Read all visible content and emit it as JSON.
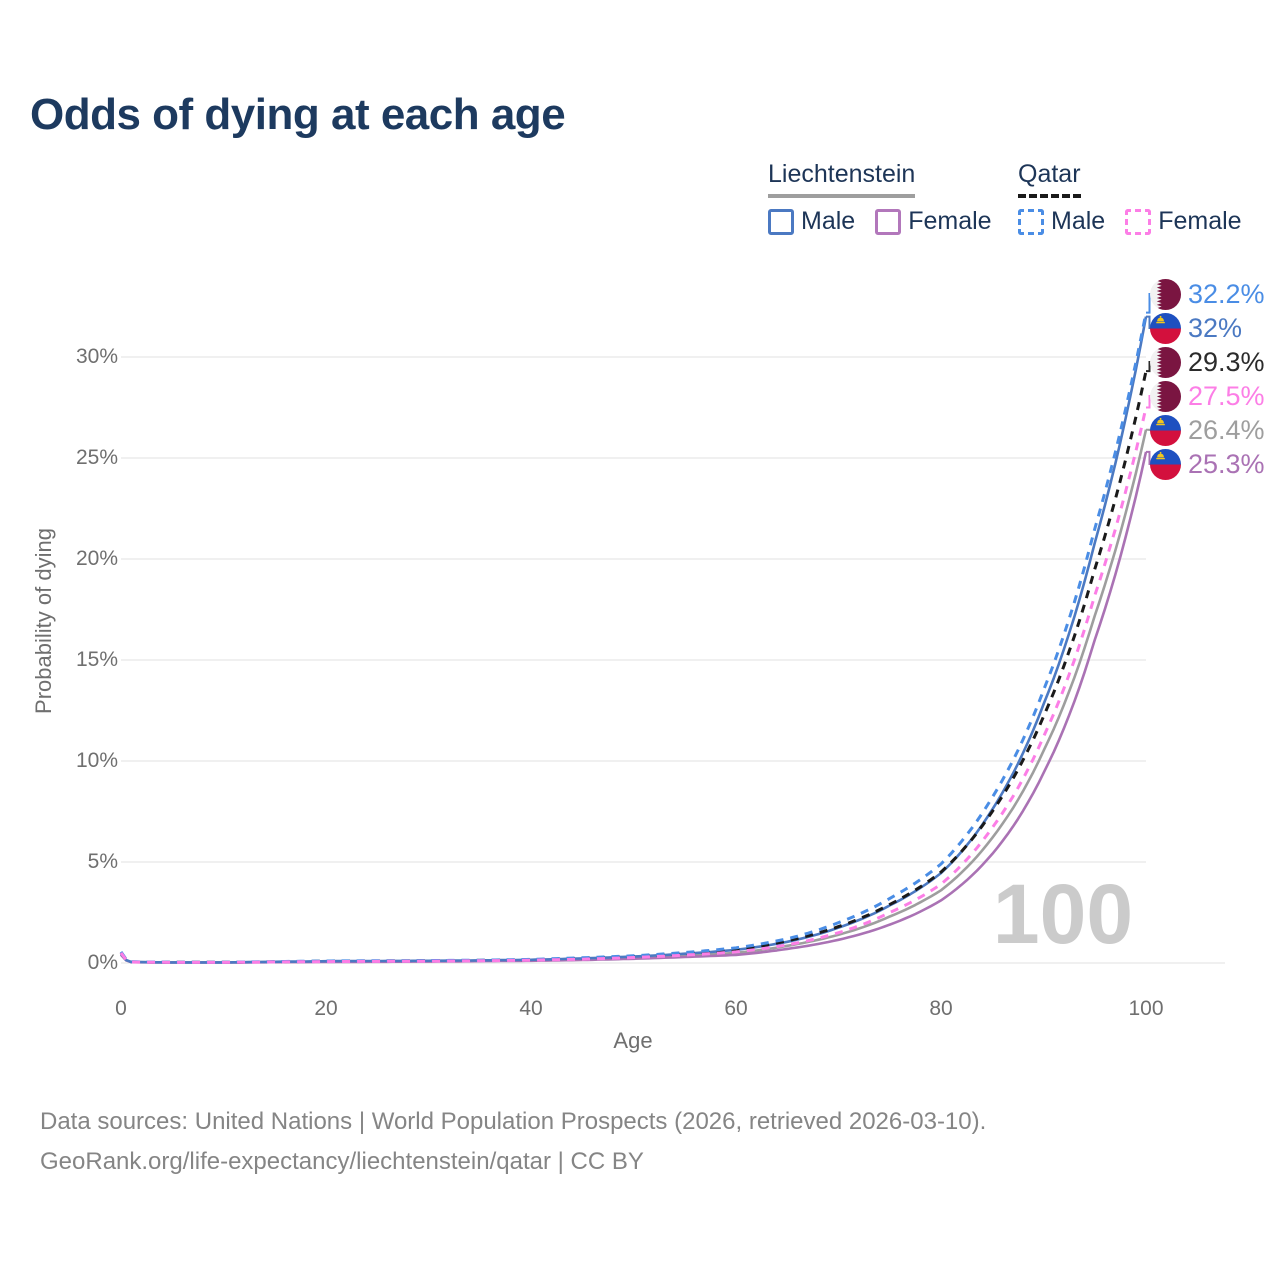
{
  "header": {
    "title": "Odds of dying at each age"
  },
  "legend": {
    "groups": [
      {
        "name": "Liechtenstein",
        "line_style": "solid",
        "underline_color": "#9e9e9e",
        "items": [
          {
            "label": "Male",
            "color": "#4b79c2"
          },
          {
            "label": "Female",
            "color": "#b277bb"
          }
        ]
      },
      {
        "name": "Qatar",
        "line_style": "dashed",
        "underline_color": "#1a1a1a",
        "items": [
          {
            "label": "Male",
            "color": "#4a8de5"
          },
          {
            "label": "Female",
            "color": "#fc7ee6"
          }
        ]
      }
    ]
  },
  "chart": {
    "watermark": "100",
    "ylabel": "Probability of dying",
    "xlabel": "Age",
    "yticks": [
      "0%",
      "5%",
      "10%",
      "15%",
      "20%",
      "25%",
      "30%"
    ],
    "xticks": [
      "0",
      "20",
      "40",
      "60",
      "80",
      "100"
    ]
  },
  "chart_data": {
    "type": "line",
    "title": "Odds of dying at each age",
    "xlabel": "Age",
    "ylabel": "Probability of dying",
    "x_range": [
      0,
      100
    ],
    "ytick_values_pct": [
      0,
      5,
      10,
      15,
      20,
      25,
      30
    ],
    "xtick_values": [
      0,
      20,
      40,
      60,
      80,
      100
    ],
    "grid": "horizontal",
    "legend_position": "top-right",
    "ages": [
      0,
      1,
      5,
      10,
      15,
      20,
      25,
      30,
      35,
      40,
      45,
      50,
      55,
      60,
      65,
      70,
      75,
      80,
      85,
      90,
      95,
      100
    ],
    "series": [
      {
        "name": "Liechtenstein Total",
        "color": "#9e9e9e",
        "dash": false,
        "end_label": "26.4%",
        "values": [
          0.42,
          0.045,
          0.03,
          0.03,
          0.05,
          0.07,
          0.08,
          0.09,
          0.11,
          0.13,
          0.18,
          0.26,
          0.37,
          0.5,
          0.85,
          1.4,
          2.3,
          3.6,
          6.2,
          10.5,
          17.2,
          26.4
        ]
      },
      {
        "name": "Liechtenstein Female",
        "color": "#aa72b4",
        "dash": false,
        "end_label": "25.3%",
        "values": [
          0.4,
          0.04,
          0.025,
          0.025,
          0.04,
          0.05,
          0.06,
          0.07,
          0.09,
          0.11,
          0.15,
          0.21,
          0.3,
          0.4,
          0.7,
          1.15,
          1.9,
          3.1,
          5.4,
          9.4,
          16.0,
          25.3
        ]
      },
      {
        "name": "Liechtenstein Male",
        "color": "#4b79c2",
        "dash": false,
        "end_label": "32%",
        "values": [
          0.45,
          0.05,
          0.03,
          0.03,
          0.06,
          0.09,
          0.1,
          0.11,
          0.13,
          0.16,
          0.23,
          0.32,
          0.46,
          0.65,
          1.05,
          1.75,
          2.85,
          4.45,
          7.6,
          12.8,
          20.8,
          32.0
        ]
      },
      {
        "name": "Qatar Total",
        "color": "#1a1a1a",
        "dash": true,
        "end_label": "29.3%",
        "values": [
          0.52,
          0.055,
          0.035,
          0.035,
          0.06,
          0.09,
          0.1,
          0.11,
          0.13,
          0.16,
          0.23,
          0.32,
          0.46,
          0.65,
          1.1,
          1.8,
          2.9,
          4.5,
          7.5,
          12.2,
          19.5,
          29.3
        ]
      },
      {
        "name": "Qatar Male",
        "color": "#4a8de5",
        "dash": true,
        "end_label": "32.2%",
        "values": [
          0.55,
          0.06,
          0.04,
          0.04,
          0.07,
          0.1,
          0.11,
          0.12,
          0.14,
          0.18,
          0.26,
          0.36,
          0.52,
          0.75,
          1.2,
          2.0,
          3.2,
          4.9,
          8.2,
          13.5,
          21.5,
          32.2
        ]
      },
      {
        "name": "Qatar Female",
        "color": "#fc7ee6",
        "dash": true,
        "end_label": "27.5%",
        "values": [
          0.5,
          0.05,
          0.03,
          0.03,
          0.05,
          0.07,
          0.08,
          0.09,
          0.11,
          0.14,
          0.19,
          0.27,
          0.39,
          0.55,
          0.9,
          1.5,
          2.5,
          3.9,
          6.7,
          11.2,
          18.2,
          27.5
        ]
      }
    ]
  },
  "end_labels": [
    {
      "text": "32.2%",
      "value": 32.2,
      "color": "#4a8de5",
      "flag": "qatar",
      "series": "Qatar Male"
    },
    {
      "text": "32%",
      "value": 32.0,
      "color": "#4b79c2",
      "flag": "liechtenstein",
      "series": "Liechtenstein Male"
    },
    {
      "text": "29.3%",
      "value": 29.3,
      "color": "#2b2b2b",
      "flag": "qatar",
      "series": "Qatar Total"
    },
    {
      "text": "27.5%",
      "value": 27.5,
      "color": "#fc7ee6",
      "flag": "qatar",
      "series": "Qatar Female"
    },
    {
      "text": "26.4%",
      "value": 26.4,
      "color": "#9e9e9e",
      "flag": "liechtenstein",
      "series": "Liechtenstein Total"
    },
    {
      "text": "25.3%",
      "value": 25.3,
      "color": "#aa72b4",
      "flag": "liechtenstein",
      "series": "Liechtenstein Female"
    }
  ],
  "footer": {
    "line1": "Data sources: United Nations | World Population Prospects (2026, retrieved 2026-03-10).",
    "line2": "GeoRank.org/life-expectancy/liechtenstein/qatar | CC BY"
  }
}
